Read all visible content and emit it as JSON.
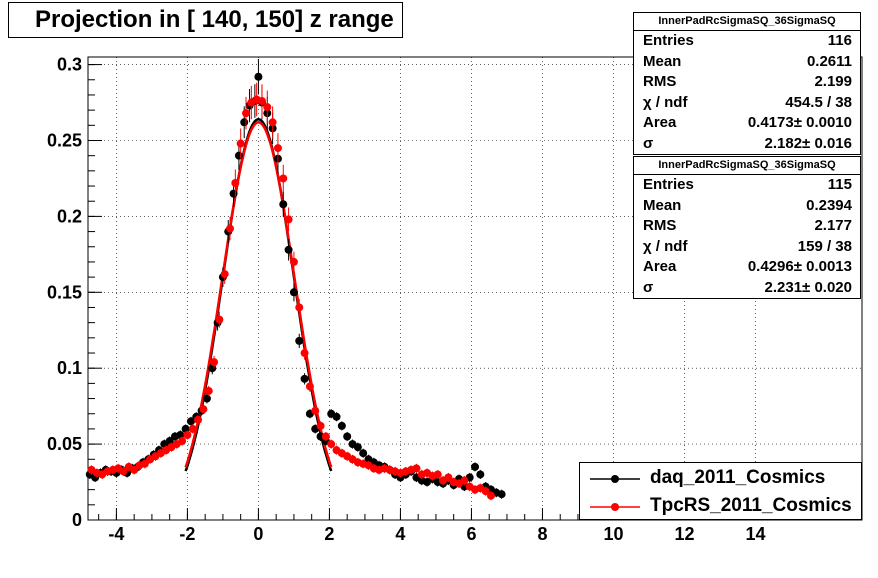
{
  "title": "Projection in [ 140, 150] z range",
  "stats": [
    {
      "name": "InnerPadRcSigmaSQ_36SigmaSQ",
      "rows": [
        {
          "label": "Entries",
          "value": "116"
        },
        {
          "label": "Mean",
          "value": "0.2611"
        },
        {
          "label": "RMS",
          "value": "2.199"
        },
        {
          "label": "χ  / ndf",
          "value": "454.5 / 38"
        },
        {
          "label": "Area",
          "value": "0.4173± 0.0010"
        },
        {
          "label": "σ",
          "value": "2.182± 0.016"
        }
      ]
    },
    {
      "name": "InnerPadRcSigmaSQ_36SigmaSQ",
      "rows": [
        {
          "label": "Entries",
          "value": "115"
        },
        {
          "label": "Mean",
          "value": "0.2394"
        },
        {
          "label": "RMS",
          "value": "2.177"
        },
        {
          "label": "χ  / ndf",
          "value": "159 / 38"
        },
        {
          "label": "Area",
          "value": "0.4296± 0.0013"
        },
        {
          "label": "σ",
          "value": "2.231± 0.020"
        }
      ]
    }
  ],
  "legend": [
    {
      "label": "daq_2011_Cosmics",
      "color": "#000000"
    },
    {
      "label": "TpcRS_2011_Cosmics",
      "color": "#ff0000"
    }
  ],
  "chart_data": {
    "type": "scatter",
    "title": "Projection in [ 140, 150] z range",
    "xlabel": "",
    "ylabel": "",
    "xlim": [
      -4.8,
      17
    ],
    "ylim": [
      0,
      0.305
    ],
    "x_ticks": [
      -4,
      -2,
      0,
      2,
      4,
      6,
      8,
      10,
      12,
      14
    ],
    "y_ticks": [
      0,
      0.05,
      0.1,
      0.15,
      0.2,
      0.25,
      0.3
    ],
    "y_tick_labels": [
      "0",
      "0.05",
      "0.1",
      "0.15",
      "0.2",
      "0.25",
      "0.3"
    ],
    "grid": true,
    "series": [
      {
        "name": "daq_2011_Cosmics",
        "color": "#000000",
        "x": [
          -4.75,
          -4.6,
          -4.45,
          -4.3,
          -4.15,
          -4.0,
          -3.85,
          -3.7,
          -3.55,
          -3.4,
          -3.25,
          -3.1,
          -2.95,
          -2.8,
          -2.65,
          -2.5,
          -2.35,
          -2.2,
          -2.05,
          -1.9,
          -1.75,
          -1.6,
          -1.45,
          -1.3,
          -1.15,
          -1.0,
          -0.85,
          -0.7,
          -0.55,
          -0.4,
          -0.25,
          -0.1,
          0.0,
          0.1,
          0.25,
          0.4,
          0.55,
          0.7,
          0.85,
          1.0,
          1.15,
          1.3,
          1.45,
          1.6,
          1.75,
          1.9,
          2.05,
          2.2,
          2.35,
          2.5,
          2.65,
          2.8,
          2.95,
          3.1,
          3.25,
          3.4,
          3.55,
          3.7,
          3.85,
          4.0,
          4.15,
          4.3,
          4.45,
          4.6,
          4.75,
          4.9,
          5.05,
          5.2,
          5.35,
          5.5,
          5.65,
          5.8,
          5.95,
          6.1,
          6.25,
          6.4,
          6.55,
          6.7,
          6.85
        ],
        "y": [
          0.03,
          0.028,
          0.031,
          0.033,
          0.032,
          0.031,
          0.033,
          0.031,
          0.034,
          0.035,
          0.038,
          0.04,
          0.043,
          0.046,
          0.05,
          0.052,
          0.055,
          0.056,
          0.06,
          0.065,
          0.068,
          0.072,
          0.08,
          0.1,
          0.13,
          0.16,
          0.19,
          0.215,
          0.24,
          0.262,
          0.273,
          0.276,
          0.292,
          0.275,
          0.268,
          0.258,
          0.238,
          0.208,
          0.178,
          0.15,
          0.118,
          0.093,
          0.07,
          0.06,
          0.055,
          0.052,
          0.07,
          0.068,
          0.062,
          0.055,
          0.05,
          0.048,
          0.044,
          0.04,
          0.038,
          0.036,
          0.035,
          0.033,
          0.03,
          0.028,
          0.03,
          0.032,
          0.028,
          0.026,
          0.025,
          0.027,
          0.025,
          0.024,
          0.026,
          0.023,
          0.027,
          0.022,
          0.028,
          0.035,
          0.03,
          0.022,
          0.02,
          0.018,
          0.017
        ]
      },
      {
        "name": "TpcRS_2011_Cosmics",
        "color": "#ff0000",
        "x": [
          -4.7,
          -4.55,
          -4.4,
          -4.25,
          -4.1,
          -3.95,
          -3.8,
          -3.65,
          -3.5,
          -3.35,
          -3.2,
          -3.05,
          -2.9,
          -2.75,
          -2.6,
          -2.45,
          -2.3,
          -2.15,
          -2.0,
          -1.85,
          -1.7,
          -1.55,
          -1.4,
          -1.25,
          -1.1,
          -0.95,
          -0.8,
          -0.65,
          -0.5,
          -0.35,
          -0.2,
          -0.05,
          0.1,
          0.25,
          0.4,
          0.55,
          0.7,
          0.85,
          1.0,
          1.15,
          1.3,
          1.45,
          1.6,
          1.75,
          1.9,
          2.05,
          2.2,
          2.35,
          2.5,
          2.65,
          2.8,
          2.95,
          3.1,
          3.25,
          3.4,
          3.55,
          3.7,
          3.85,
          4.0,
          4.15,
          4.3,
          4.45,
          4.6,
          4.75,
          4.9,
          5.05,
          5.2,
          5.35,
          5.5,
          5.65,
          5.8,
          5.95,
          6.1,
          6.25,
          6.4,
          6.55
        ],
        "y": [
          0.033,
          0.031,
          0.03,
          0.032,
          0.033,
          0.034,
          0.032,
          0.035,
          0.033,
          0.036,
          0.037,
          0.04,
          0.042,
          0.044,
          0.046,
          0.048,
          0.05,
          0.052,
          0.056,
          0.06,
          0.066,
          0.073,
          0.085,
          0.104,
          0.132,
          0.162,
          0.192,
          0.222,
          0.248,
          0.268,
          0.275,
          0.277,
          0.276,
          0.272,
          0.262,
          0.245,
          0.225,
          0.198,
          0.17,
          0.14,
          0.11,
          0.088,
          0.072,
          0.062,
          0.055,
          0.05,
          0.046,
          0.044,
          0.042,
          0.04,
          0.038,
          0.037,
          0.036,
          0.034,
          0.033,
          0.034,
          0.033,
          0.032,
          0.031,
          0.032,
          0.033,
          0.034,
          0.03,
          0.031,
          0.029,
          0.03,
          0.026,
          0.028,
          0.025,
          0.024,
          0.026,
          0.022,
          0.02,
          0.021,
          0.019,
          0.016
        ]
      }
    ],
    "fits": [
      {
        "series": "daq_2011_Cosmics",
        "color": "#000000",
        "x_range": [
          -2.05,
          2.05
        ],
        "amplitude": 0.264,
        "sigma": 1.0
      },
      {
        "series": "TpcRS_2011_Cosmics",
        "color": "#ff0000",
        "x_range": [
          -2.05,
          2.05
        ],
        "amplitude": 0.262,
        "sigma": 1.02
      }
    ]
  }
}
